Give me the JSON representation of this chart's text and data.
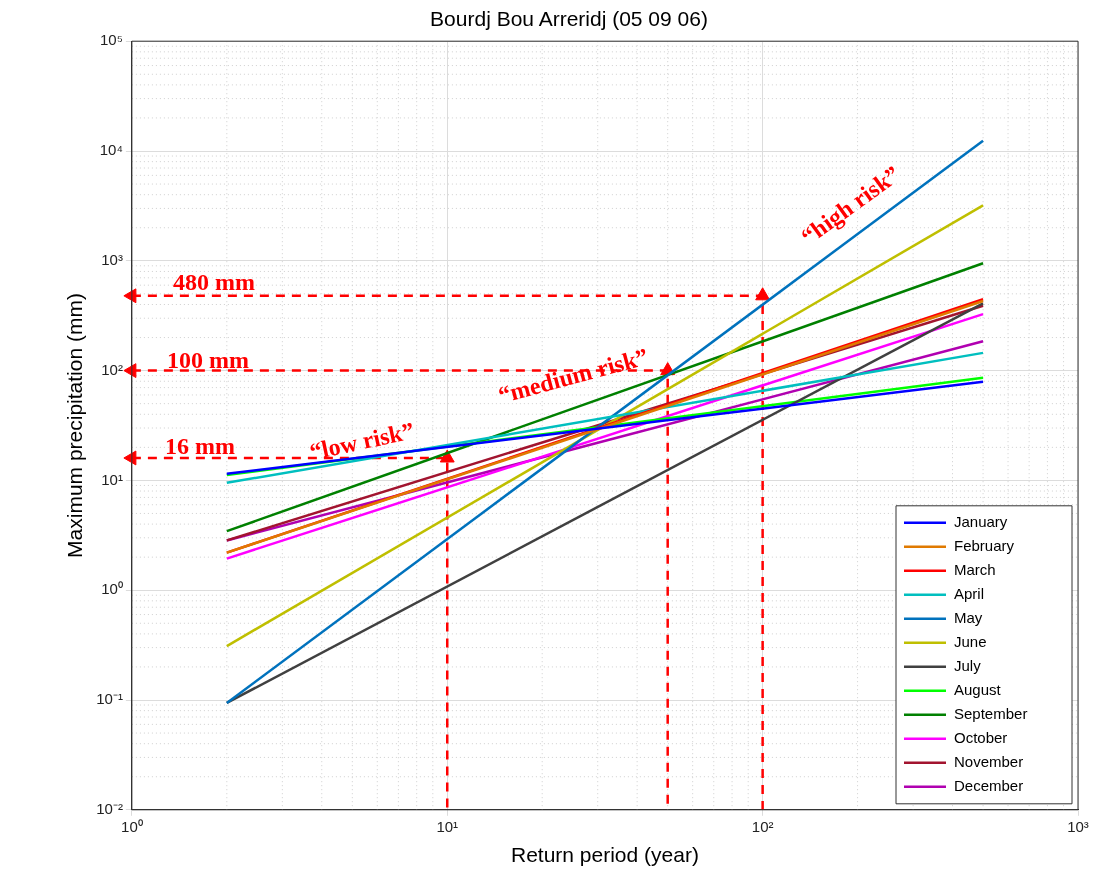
{
  "chart_data": {
    "type": "line",
    "title": "Bourdj Bou Arreridj (05 09 06)",
    "xlabel": "Return period (year)",
    "ylabel": "Maximum precipitation (mm)",
    "log": "xy",
    "grid": true,
    "legend": "bottom right",
    "marker": "none",
    "line_style": "solid",
    "xlim": [
      1,
      1000
    ],
    "xticks": [
      {
        "value": 1,
        "label": "10⁰"
      },
      {
        "value": 10,
        "label": "10¹"
      },
      {
        "value": 100,
        "label": "10²"
      },
      {
        "value": 1000,
        "label": "10³"
      }
    ],
    "ylim": [
      0.01,
      100000
    ],
    "yticks": [
      {
        "value": 0.01,
        "label": "10⁻²"
      },
      {
        "value": 0.1,
        "label": "10⁻¹"
      },
      {
        "value": 1,
        "label": "10⁰"
      },
      {
        "value": 10,
        "label": "10¹"
      },
      {
        "value": 100,
        "label": "10²"
      },
      {
        "value": 1000,
        "label": "10³"
      },
      {
        "value": 10000,
        "label": "10⁴"
      },
      {
        "value": 100000,
        "label": "10⁵"
      }
    ],
    "x": [
      2,
      500
    ],
    "series": [
      {
        "name": "January",
        "color": "#0000ff",
        "values": [
          11.5,
          79
        ]
      },
      {
        "name": "February",
        "color": "#e07a00",
        "values": [
          2.2,
          430
        ]
      },
      {
        "name": "March",
        "color": "#ff0000",
        "values": [
          2.2,
          447
        ]
      },
      {
        "name": "April",
        "color": "#00bfbf",
        "values": [
          9.5,
          145
        ]
      },
      {
        "name": "May",
        "color": "#0072bd",
        "values": [
          0.094,
          12400
        ]
      },
      {
        "name": "June",
        "color": "#bfbf00",
        "values": [
          0.31,
          3200
        ]
      },
      {
        "name": "July",
        "color": "#404040",
        "values": [
          0.094,
          410
        ]
      },
      {
        "name": "August",
        "color": "#00ff00",
        "values": [
          11.2,
          86
        ]
      },
      {
        "name": "September",
        "color": "#008000",
        "values": [
          3.45,
          950
        ]
      },
      {
        "name": "October",
        "color": "#ff00ff",
        "values": [
          1.94,
          327
        ]
      },
      {
        "name": "November",
        "color": "#a2142f",
        "values": [
          2.84,
          390
        ]
      },
      {
        "name": "December",
        "color": "#b000b0",
        "values": [
          2.84,
          185
        ]
      },
      {
        "type": "line",
        "color": "#ff0000",
        "line_style": "dashed",
        "marker": "triangle",
        "x": [
          1,
          100,
          100
        ],
        "values": [
          480,
          480,
          0.01
        ]
      },
      {
        "type": "line",
        "color": "#ff0000",
        "line_style": "dashed",
        "marker": "triangle",
        "x": [
          1,
          50,
          50
        ],
        "values": [
          100,
          100,
          0.01
        ]
      },
      {
        "type": "line",
        "color": "#ff0000",
        "line_style": "dashed",
        "marker": "triangle",
        "x": [
          1,
          10,
          10
        ],
        "values": [
          16,
          16,
          0.01
        ]
      }
    ],
    "annotations": [
      {
        "text": "480 mm",
        "x": 1,
        "y": 480
      },
      {
        "text": "100 mm",
        "x": 1,
        "y": 100
      },
      {
        "text": "16 mm",
        "x": 1,
        "y": 16
      },
      {
        "text": "“low risk”",
        "x": 10,
        "y": 16
      },
      {
        "text": "“medium risk”",
        "x": 50,
        "y": 100
      },
      {
        "text": "“high risk”",
        "x": 100,
        "y": 480
      }
    ]
  }
}
